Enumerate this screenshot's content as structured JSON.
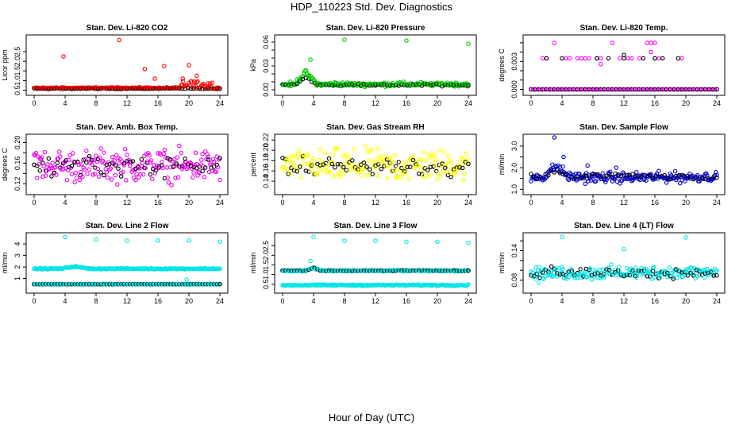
{
  "page": {
    "title": "HDP_110223  Std. Dev. Diagnostics",
    "xlabel": "Hour of Day (UTC)"
  },
  "colors": {
    "axis": "#000000",
    "black_points": "#000000"
  },
  "chart_data": [
    {
      "type": "scatter",
      "title": "Stan. Dev. Li-820 CO2",
      "ylabel": "Licor ppm",
      "color": "#ff0000",
      "xlim": [
        0,
        24
      ],
      "ylim": [
        0.4,
        3.2
      ],
      "xticks": [
        0,
        4,
        8,
        12,
        16,
        20,
        24
      ],
      "yticks": [
        0.5,
        1.0,
        1.5,
        2.0,
        2.5
      ],
      "ytick_labels": [
        "0.5",
        "1.0",
        "1.5",
        "2.0",
        "2.5"
      ],
      "outliers": [
        [
          3.8,
          2.25
        ],
        [
          11.0,
          3.1
        ],
        [
          14.3,
          1.6
        ],
        [
          16.8,
          1.75
        ],
        [
          20.0,
          1.8
        ],
        [
          21.0,
          1.25
        ],
        [
          19.2,
          1.1
        ],
        [
          15.6,
          1.1
        ]
      ],
      "main": {
        "color_base": 0.62,
        "color_noise": 0.05,
        "black_base": 0.58,
        "black_noise": 0.04,
        "extra_color_rise": {
          "from": 19,
          "to": 23,
          "amount": 0.35
        }
      }
    },
    {
      "type": "scatter",
      "title": "Stan. Dev. Li-820 Pressure",
      "ylabel": "kPa",
      "color": "#00cc00",
      "xlim": [
        0,
        24
      ],
      "ylim": [
        -0.003,
        0.065
      ],
      "xticks": [
        0,
        4,
        8,
        12,
        16,
        20,
        24
      ],
      "yticks": [
        0.0,
        0.01,
        0.02,
        0.03,
        0.04,
        0.05,
        0.06
      ],
      "ytick_labels": [
        "0.00",
        "",
        "",
        "0.03",
        "",
        "",
        "0.06"
      ],
      "outliers": [
        [
          8.0,
          0.063
        ],
        [
          16.0,
          0.062
        ],
        [
          24.0,
          0.058
        ],
        [
          3.6,
          0.038
        ]
      ],
      "main": {
        "color_base": 0.007,
        "color_noise": 0.004,
        "black_base": 0.006,
        "black_noise": 0.002,
        "bump": {
          "from": 1.5,
          "to": 4.5,
          "amount": 0.015
        }
      }
    },
    {
      "type": "scatter",
      "title": "Stan. Dev. Li-820 Temp.",
      "ylabel": "degrees C",
      "color": "#ff00ff",
      "xlim": [
        0,
        24
      ],
      "ylim": [
        -0.0003,
        0.0055
      ],
      "xticks": [
        0,
        4,
        8,
        12,
        16,
        20,
        24
      ],
      "yticks": [
        0.0,
        0.001,
        0.002,
        0.003,
        0.004,
        0.005
      ],
      "ytick_labels": [
        "0.000",
        "",
        "",
        "0.003",
        "",
        ""
      ],
      "levels": [
        0.0,
        0.003333,
        0.005
      ],
      "outliers": []
    },
    {
      "type": "scatter",
      "title": "Stan. Dev. Amb. Box Temp.",
      "ylabel": "degrees C",
      "color": "#ee00ee",
      "xlim": [
        0,
        24
      ],
      "ylim": [
        0.105,
        0.21
      ],
      "xticks": [
        0,
        4,
        8,
        12,
        16,
        20,
        24
      ],
      "yticks": [
        0.12,
        0.14,
        0.16,
        0.18,
        0.2
      ],
      "ytick_labels": [
        "0.12",
        "",
        "0.16",
        "",
        "0.20"
      ],
      "outliers": [],
      "main": {
        "color_base": 0.155,
        "color_noise": 0.045,
        "black_base": 0.155,
        "black_noise": 0.03
      }
    },
    {
      "type": "scatter",
      "title": "Stan. Dev. Gas Stream RH",
      "ylabel": "percent",
      "color": "#ffff00",
      "xlim": [
        0,
        24
      ],
      "ylim": [
        0.12,
        0.225
      ],
      "xticks": [
        0,
        4,
        8,
        12,
        16,
        20,
        24
      ],
      "yticks": [
        0.14,
        0.16,
        0.18,
        0.2,
        0.22
      ],
      "ytick_labels": [
        "0.14",
        "0.16",
        "0.18",
        "0.20",
        "0.22"
      ],
      "outliers": [],
      "main": {
        "color_base": 0.17,
        "color_noise": 0.045,
        "black_base": 0.168,
        "black_noise": 0.03
      }
    },
    {
      "type": "scatter",
      "title": "Stan. Dev. Sample Flow",
      "ylabel": "ml/min",
      "color": "#0000cc",
      "xlim": [
        0,
        24
      ],
      "ylim": [
        0.9,
        3.4
      ],
      "xticks": [
        0,
        4,
        8,
        12,
        16,
        20,
        24
      ],
      "yticks": [
        1.0,
        1.5,
        2.0,
        2.5,
        3.0
      ],
      "ytick_labels": [
        "1.0",
        "",
        "2.0",
        "",
        "3.0"
      ],
      "outliers": [
        [
          3.0,
          3.4
        ],
        [
          4.2,
          2.5
        ],
        [
          7.3,
          2.1
        ],
        [
          11.0,
          2.0
        ]
      ],
      "main": {
        "color_base": 1.55,
        "color_noise": 0.35,
        "black_base": 1.6,
        "black_noise": 0.2,
        "bump": {
          "from": 1.5,
          "to": 5,
          "amount": 0.5
        }
      }
    },
    {
      "type": "scatter",
      "title": "Stan. Dev. Line 2 Flow",
      "ylabel": "ml/min",
      "color": "#00e5e5",
      "xlim": [
        0,
        24
      ],
      "ylim": [
        0.0,
        4.7
      ],
      "xticks": [
        0,
        4,
        8,
        12,
        16,
        20,
        24
      ],
      "yticks": [
        1,
        2,
        3,
        4
      ],
      "ytick_labels": [
        "1",
        "2",
        "3",
        "4"
      ],
      "outliers": [
        [
          4.0,
          4.6
        ],
        [
          8.0,
          4.4
        ],
        [
          12.0,
          4.3
        ],
        [
          16.0,
          4.3
        ],
        [
          20.0,
          4.3
        ],
        [
          24.0,
          4.2
        ],
        [
          19.7,
          0.9
        ]
      ],
      "bands": [
        {
          "value": 1.85,
          "noise": 0.08,
          "who": "color",
          "bump": {
            "from": 3.5,
            "to": 7,
            "amount": 0.2
          }
        },
        {
          "value": 0.5,
          "noise": 0.03,
          "who": "both"
        }
      ]
    },
    {
      "type": "scatter",
      "title": "Stan. Dev. Line 3 Flow",
      "ylabel": "ml/min",
      "color": "#00e5e5",
      "xlim": [
        0,
        24
      ],
      "ylim": [
        0.2,
        3.0
      ],
      "xticks": [
        0,
        4,
        8,
        12,
        16,
        20,
        24
      ],
      "yticks": [
        0.5,
        1.0,
        1.5,
        2.0,
        2.5
      ],
      "ytick_labels": [
        "0.5",
        "1.0",
        "1.5",
        "2.0",
        "2.5"
      ],
      "outliers": [
        [
          4.0,
          2.95
        ],
        [
          8.0,
          2.75
        ],
        [
          12.0,
          2.75
        ],
        [
          16.0,
          2.7
        ],
        [
          20.0,
          2.7
        ],
        [
          24.0,
          2.65
        ],
        [
          3.6,
          1.7
        ]
      ],
      "bands": [
        {
          "value": 1.2,
          "noise": 0.05,
          "who": "both",
          "bump": {
            "from": 3,
            "to": 5,
            "amount": 0.15
          }
        },
        {
          "value": 0.45,
          "noise": 0.05,
          "who": "color"
        }
      ]
    },
    {
      "type": "scatter",
      "title": "Stan. Dev. Line 4 (LT) Flow",
      "ylabel": "ml/min",
      "color": "#00e5e5",
      "xlim": [
        0,
        24
      ],
      "ylim": [
        0.06,
        0.17
      ],
      "xticks": [
        0,
        4,
        8,
        12,
        16,
        20,
        24
      ],
      "yticks": [
        0.08,
        0.1,
        0.12,
        0.14,
        0.16
      ],
      "ytick_labels": [
        "0.08",
        "",
        "",
        "0.14",
        ""
      ],
      "outliers": [
        [
          4.0,
          0.168
        ],
        [
          12.0,
          0.143
        ],
        [
          20.0,
          0.167
        ],
        [
          1.0,
          0.075
        ]
      ],
      "main": {
        "color_base": 0.095,
        "color_noise": 0.02,
        "black_base": 0.095,
        "black_noise": 0.015
      }
    }
  ]
}
